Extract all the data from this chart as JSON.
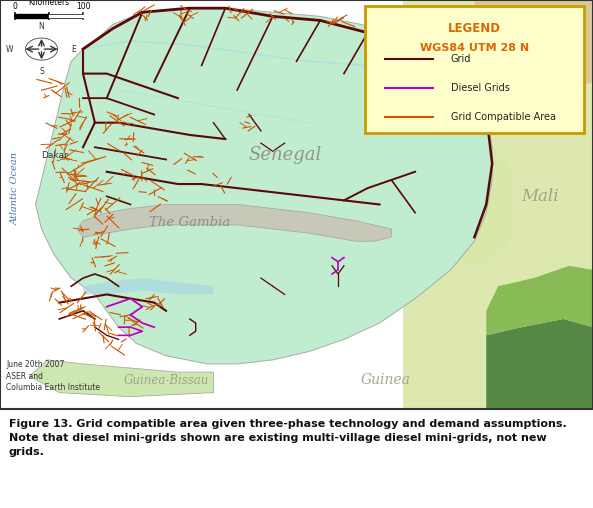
{
  "caption_line1": "Figure 13. Grid compatible area given three-phase technology and demand assumptions.",
  "caption_line2": "Note that diesel mini-grids shown are existing multi-village diesel mini-grids, not new",
  "caption_line3": "grids.",
  "legend_title": "LEGEND",
  "legend_subtitle": "WGS84 UTM 28 N",
  "legend_items": [
    {
      "label": "Grid",
      "color": "#5a0808",
      "lw": 1.5
    },
    {
      "label": "Diesel Grids",
      "color": "#bb00bb",
      "lw": 1.5
    },
    {
      "label": "Grid Compatible Area",
      "color": "#cc5500",
      "lw": 1.5
    }
  ],
  "legend_box_color": "#ffffcc",
  "legend_border_color": "#cc9900",
  "legend_title_color": "#dd6600",
  "ocean_color": "#99d4e0",
  "senegal_fill": "#c0ecd0",
  "gambia_fill": "#c8c8b8",
  "east_fill_1": "#e0ebb8",
  "east_fill_2": "#c8e8a0",
  "east_fill_3": "#98c868",
  "guinea_fill": "#d0e8b8",
  "fig_width": 5.93,
  "fig_height": 5.08,
  "dpi": 100
}
